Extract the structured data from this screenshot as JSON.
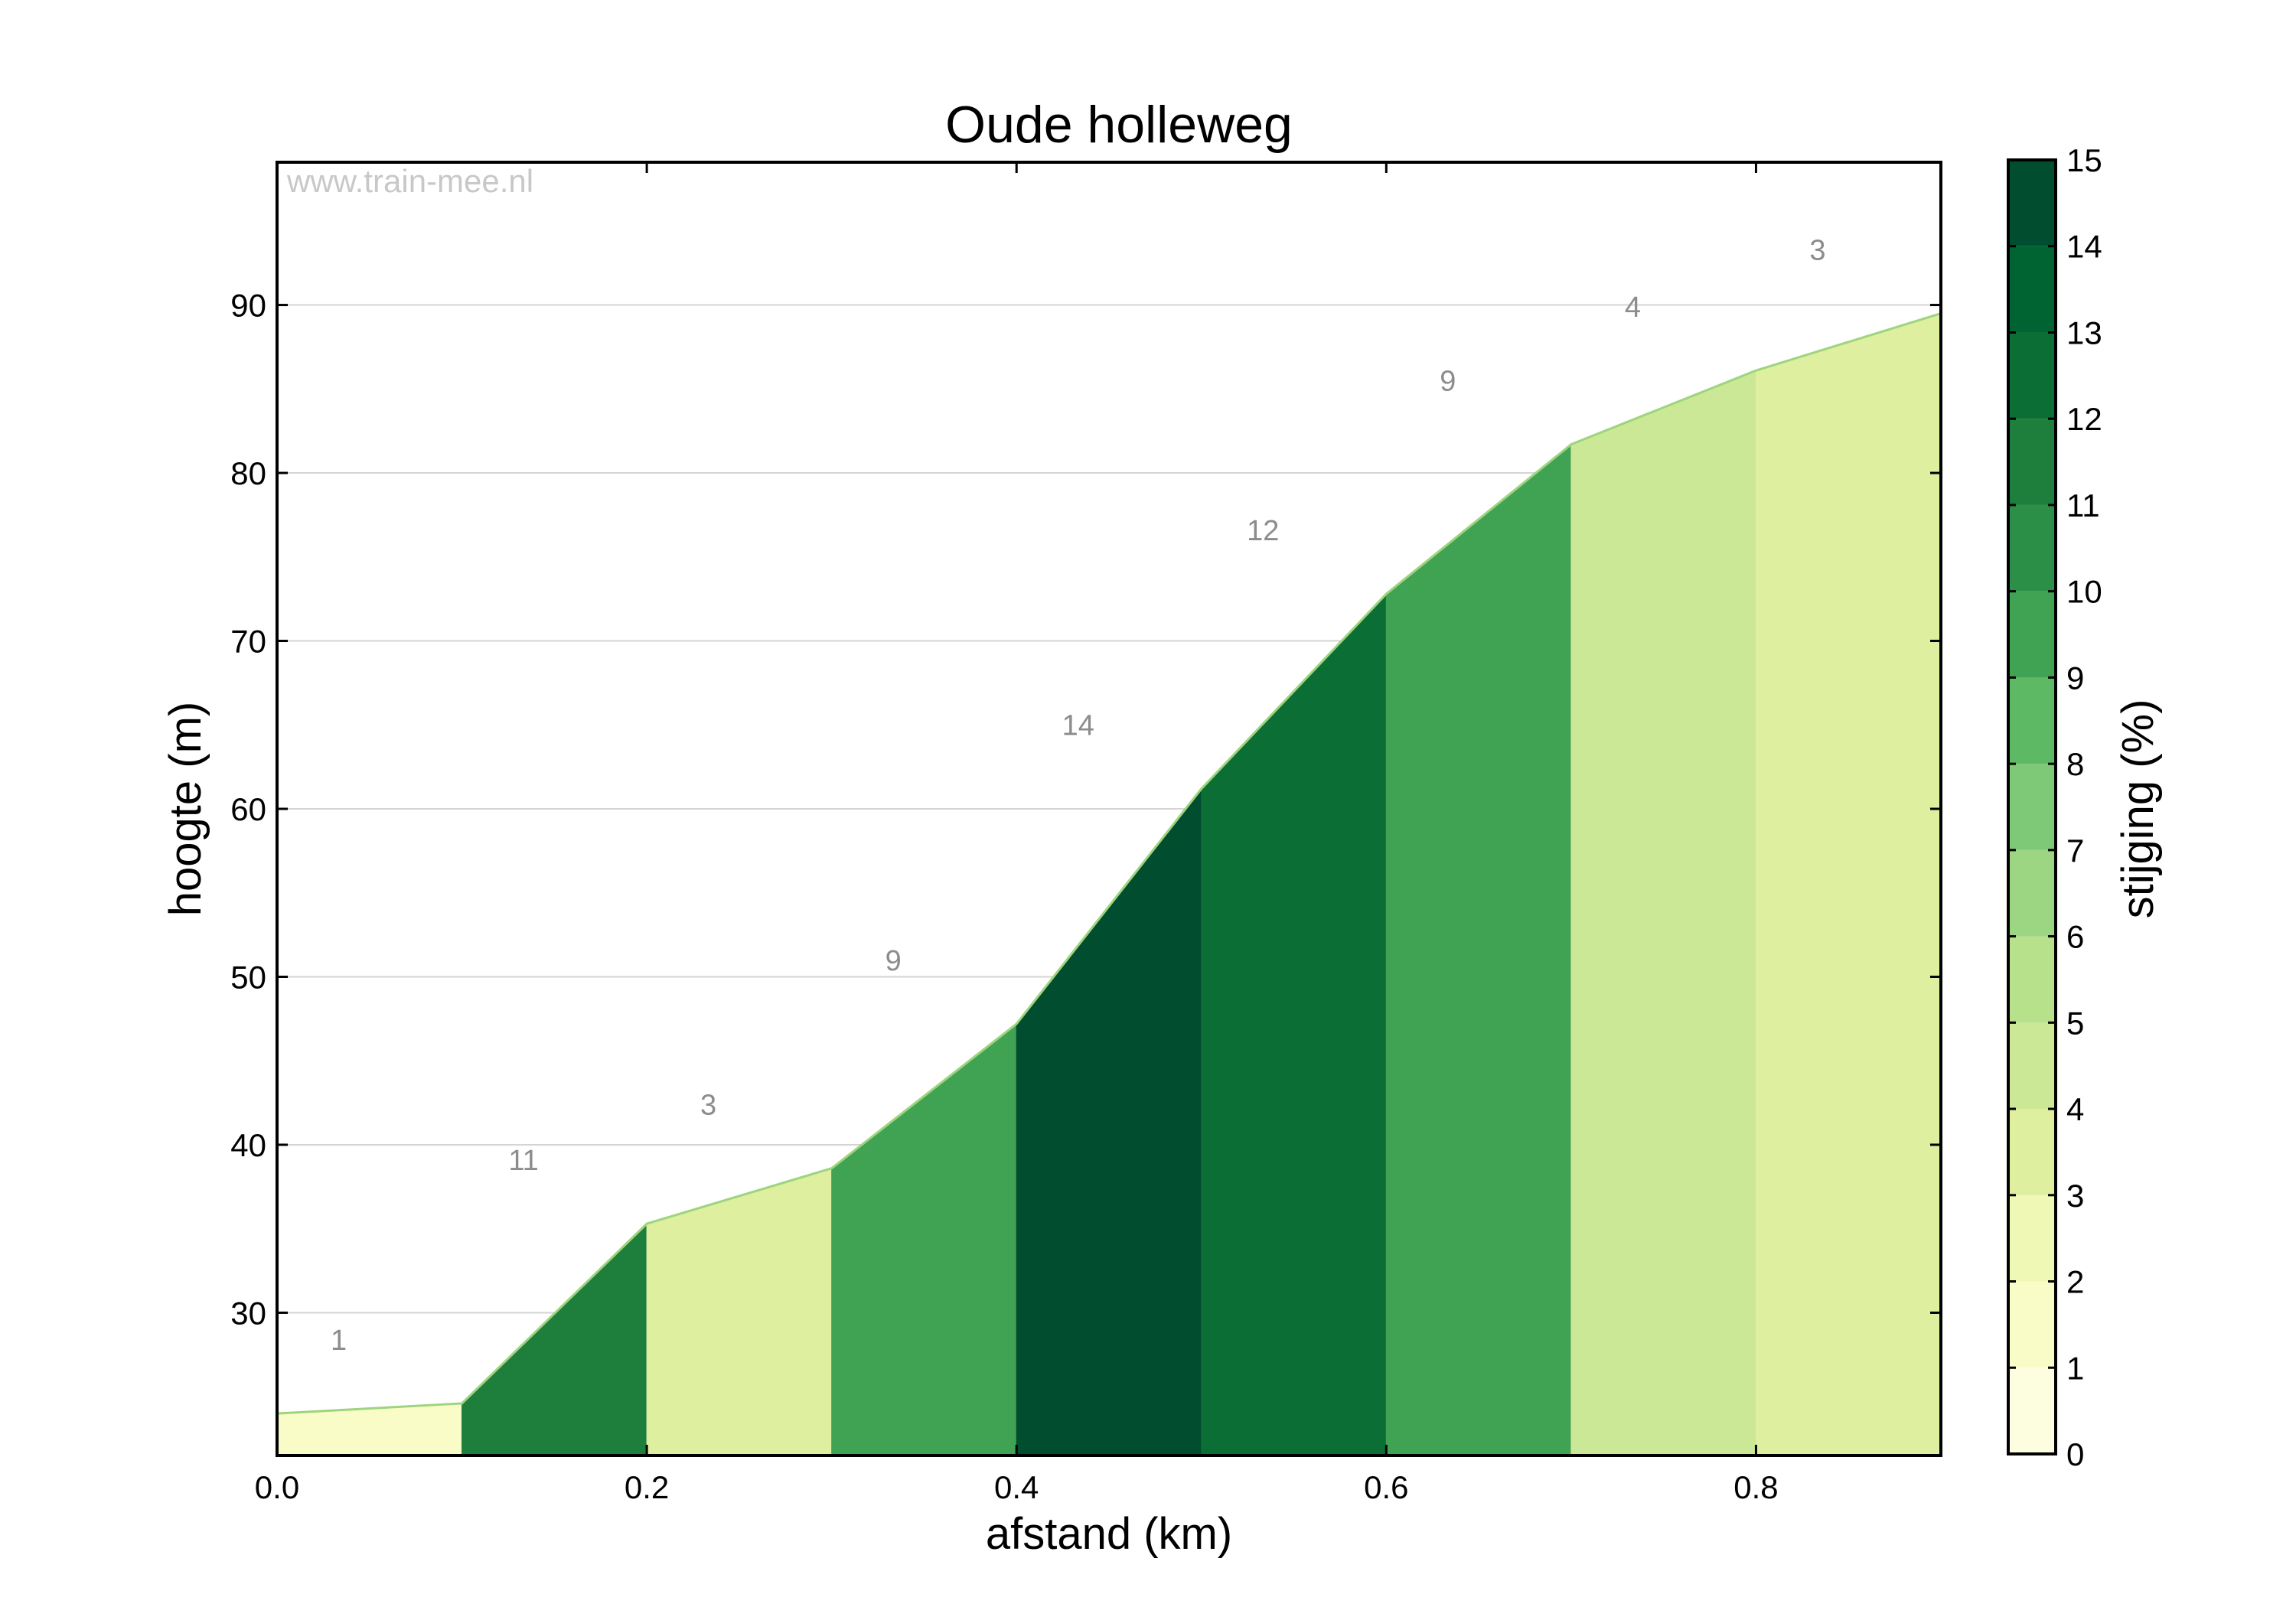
{
  "chart_data": {
    "type": "area",
    "title": "Oude holleweg",
    "xlabel": "afstand (km)",
    "ylabel": "hoogte (m)",
    "xlim": [
      0.0,
      0.9
    ],
    "ylim": [
      21.5,
      98.5
    ],
    "x_ticks": [
      "0.0",
      "0.2",
      "0.4",
      "0.6",
      "0.8"
    ],
    "y_ticks": [
      "30",
      "40",
      "50",
      "60",
      "70",
      "80",
      "90"
    ],
    "grid": true,
    "watermark": "www.train-mee.nl",
    "profile": {
      "x": [
        0.0,
        0.1,
        0.2,
        0.3,
        0.4,
        0.5,
        0.6,
        0.7,
        0.8,
        0.9
      ],
      "elevation": [
        24.0,
        24.6,
        35.3,
        38.6,
        47.2,
        61.2,
        72.8,
        81.7,
        86.1,
        89.5
      ]
    },
    "segments": [
      {
        "start": 0.0,
        "end": 0.1,
        "gradient": 1,
        "label": "1"
      },
      {
        "start": 0.1,
        "end": 0.2,
        "gradient": 11,
        "label": "11"
      },
      {
        "start": 0.2,
        "end": 0.3,
        "gradient": 3,
        "label": "3"
      },
      {
        "start": 0.3,
        "end": 0.4,
        "gradient": 9,
        "label": "9"
      },
      {
        "start": 0.4,
        "end": 0.5,
        "gradient": 14,
        "label": "14"
      },
      {
        "start": 0.5,
        "end": 0.6,
        "gradient": 12,
        "label": "12"
      },
      {
        "start": 0.6,
        "end": 0.7,
        "gradient": 9,
        "label": "9"
      },
      {
        "start": 0.7,
        "end": 0.8,
        "gradient": 4,
        "label": "4"
      },
      {
        "start": 0.8,
        "end": 0.9,
        "gradient": 3,
        "label": "3"
      }
    ],
    "colorbar": {
      "label": "stijging (%)",
      "range": [
        0,
        15
      ],
      "ticks": [
        "0",
        "1",
        "2",
        "3",
        "4",
        "5",
        "6",
        "7",
        "8",
        "9",
        "10",
        "11",
        "12",
        "13",
        "14",
        "15"
      ],
      "colors": [
        "#fdfde0",
        "#f9fcc7",
        "#f0f8b6",
        "#deefa0",
        "#cbe896",
        "#b8e18c",
        "#9dd683",
        "#7dc977",
        "#5eb965",
        "#40a353",
        "#2b8f47",
        "#1e7f3d",
        "#0b6f35",
        "#006332",
        "#004d2f"
      ]
    }
  }
}
